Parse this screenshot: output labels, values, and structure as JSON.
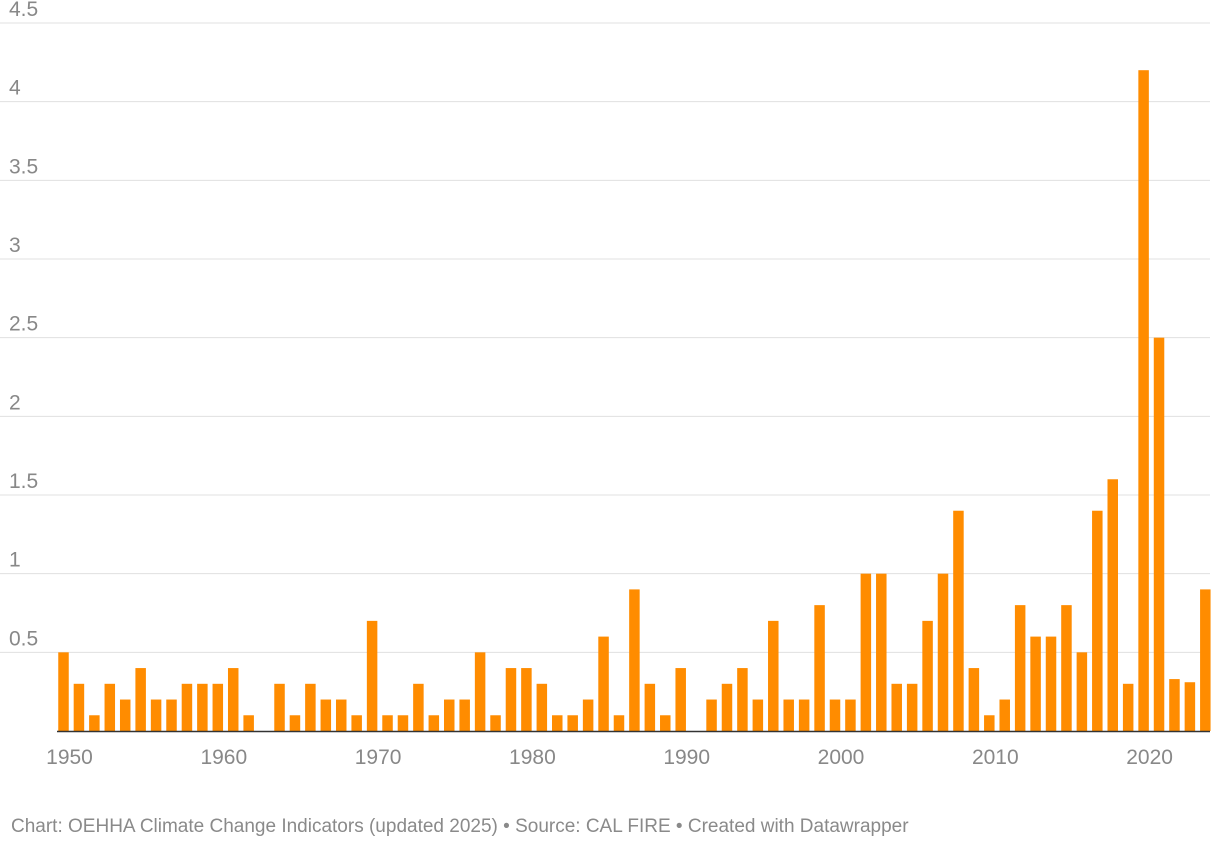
{
  "chart_data": {
    "type": "bar",
    "title": "",
    "xlabel": "",
    "ylabel": "",
    "x": [
      1950,
      1951,
      1952,
      1953,
      1954,
      1955,
      1956,
      1957,
      1958,
      1959,
      1960,
      1961,
      1962,
      1963,
      1964,
      1965,
      1966,
      1967,
      1968,
      1969,
      1970,
      1971,
      1972,
      1973,
      1974,
      1975,
      1976,
      1977,
      1978,
      1979,
      1980,
      1981,
      1982,
      1983,
      1984,
      1985,
      1986,
      1987,
      1988,
      1989,
      1990,
      1991,
      1992,
      1993,
      1994,
      1995,
      1996,
      1997,
      1998,
      1999,
      2000,
      2001,
      2002,
      2003,
      2004,
      2005,
      2006,
      2007,
      2008,
      2009,
      2010,
      2011,
      2012,
      2013,
      2014,
      2015,
      2016,
      2017,
      2018,
      2019,
      2020,
      2021,
      2022,
      2023,
      2024
    ],
    "values": [
      0.5,
      0.3,
      0.1,
      0.3,
      0.2,
      0.4,
      0.2,
      0.2,
      0.3,
      0.3,
      0.3,
      0.4,
      0.1,
      0,
      0.3,
      0.1,
      0.3,
      0.2,
      0.2,
      0.1,
      0.7,
      0.1,
      0.1,
      0.3,
      0.1,
      0.2,
      0.2,
      0.5,
      0.1,
      0.4,
      0.4,
      0.3,
      0.1,
      0.1,
      0.2,
      0.6,
      0.1,
      0.9,
      0.3,
      0.1,
      0.4,
      0,
      0.2,
      0.3,
      0.4,
      0.2,
      0.7,
      0.2,
      0.2,
      0.8,
      0.2,
      0.2,
      1.0,
      1.0,
      0.3,
      0.3,
      0.7,
      1.0,
      1.4,
      0.4,
      0.1,
      0.2,
      0.8,
      0.6,
      0.6,
      0.8,
      0.5,
      1.4,
      1.6,
      0.3,
      4.2,
      2.5,
      0.33,
      0.31,
      0.9
    ],
    "ylim": [
      0,
      4.5
    ],
    "y_ticks": [
      "0.5",
      "1",
      "1.5",
      "2",
      "2.5",
      "3",
      "3.5",
      "4",
      "4.5"
    ],
    "x_ticks": [
      "1950",
      "1960",
      "1970",
      "1980",
      "1990",
      "2000",
      "2010",
      "2020"
    ],
    "bar_color": "#ff8c00",
    "grid": true
  },
  "footer": {
    "text": "Chart: OEHHA Climate Change Indicators (updated 2025) • Source: CAL FIRE • Created with Datawrapper"
  }
}
